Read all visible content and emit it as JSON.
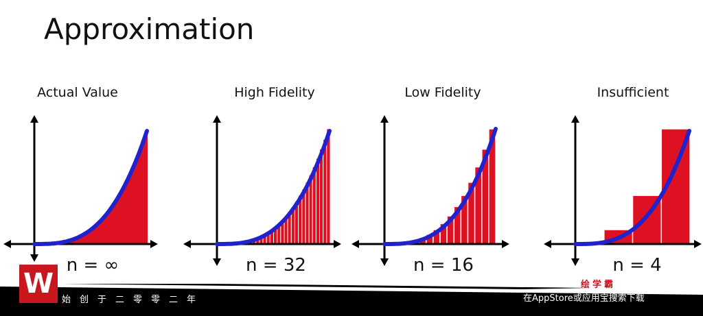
{
  "title": "Approximation",
  "panels": [
    {
      "title": "Actual Value",
      "n_label": "n = ∞",
      "n": null
    },
    {
      "title": "High Fidelity",
      "n_label": "n = 32",
      "n": 32
    },
    {
      "title": "Low Fidelity",
      "n_label": "n = 16",
      "n": 16
    },
    {
      "title": "Insufficient",
      "n_label": "n = 4",
      "n": 4
    }
  ],
  "colors": {
    "curve": "#2222cc",
    "fill": "#dd1122",
    "axis": "#000000",
    "banner": "#000000",
    "logo": "#c8171e"
  },
  "banner": {
    "logo_text": "W",
    "tagline": "始创于二零零二年",
    "brand": "绘学霸",
    "store_text": "在AppStore或应用宝搜索下载"
  }
}
